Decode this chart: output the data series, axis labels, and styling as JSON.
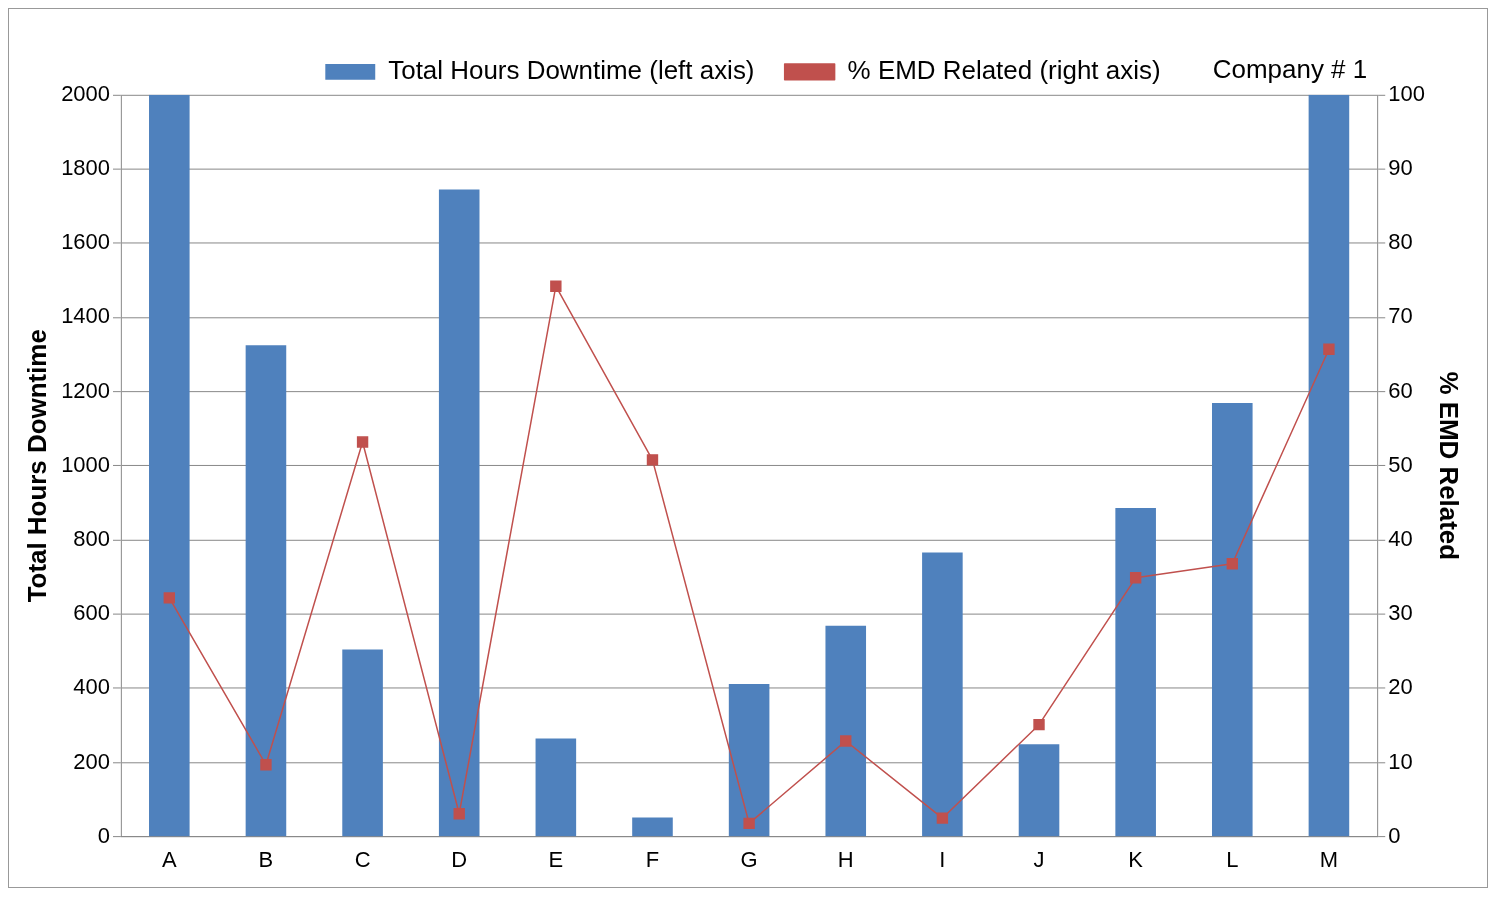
{
  "chart_data": {
    "type": "bar",
    "categories": [
      "A",
      "B",
      "C",
      "D",
      "E",
      "F",
      "G",
      "H",
      "I",
      "J",
      "K",
      "L",
      "M"
    ],
    "series": [
      {
        "name": "Total Hours Downtime (left axis)",
        "color": "#4f81bd",
        "values": [
          2000,
          1325,
          505,
          1745,
          265,
          52,
          412,
          569,
          766,
          249,
          886,
          1169,
          2000
        ]
      },
      {
        "name": "% EMD Related (right axis)",
        "type": "line",
        "axis": "y2",
        "color": "#c0504d",
        "marker": "square",
        "values": [
          32.2,
          9.7,
          53.2,
          3.1,
          74.2,
          50.8,
          1.8,
          12.9,
          2.5,
          15.1,
          34.9,
          36.8,
          65.7
        ]
      }
    ],
    "ylabel": "Total Hours Downtime",
    "y2label": "% EMD Related",
    "ylim": [
      0,
      2000
    ],
    "yticks": [
      0,
      200,
      400,
      600,
      800,
      1000,
      1200,
      1400,
      1600,
      1800,
      2000
    ],
    "y2lim": [
      0,
      100
    ],
    "y2ticks": [
      0,
      10,
      20,
      30,
      40,
      50,
      60,
      70,
      80,
      90,
      100
    ],
    "grid": "y",
    "legend": "top",
    "annotations": [
      "Company # 1"
    ]
  }
}
